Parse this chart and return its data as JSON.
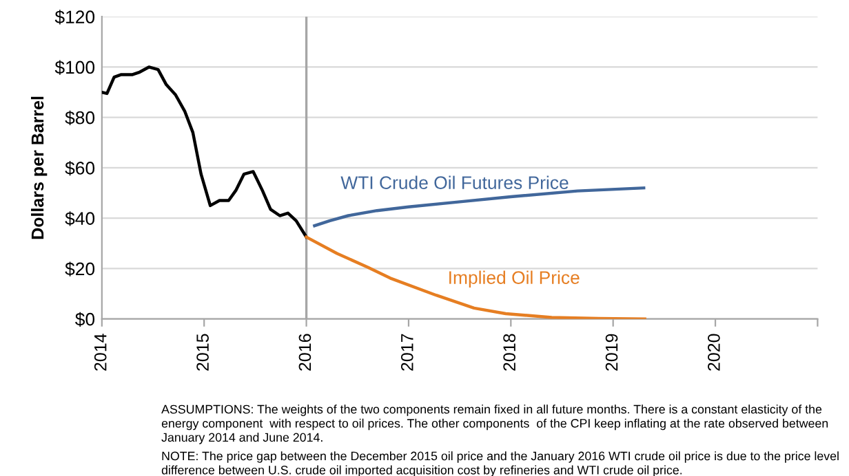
{
  "chart_data": {
    "type": "line",
    "ylabel": "Dollars per Barrel",
    "series": [
      {
        "color": "#000000",
        "x": [
          2014.0,
          2014.05,
          2014.12,
          2014.19,
          2014.3,
          2014.37,
          2014.46,
          2014.55,
          2014.63,
          2014.72,
          2014.81,
          2014.89,
          2014.97,
          2015.06,
          2015.15,
          2015.24,
          2015.31,
          2015.39,
          2015.48,
          2015.57,
          2015.65,
          2015.74,
          2015.82,
          2015.9,
          2016.0
        ],
        "values": [
          90,
          89.5,
          96,
          97,
          97,
          98,
          100,
          99,
          93,
          89,
          82.5,
          74,
          57.5,
          45,
          47,
          47,
          51,
          57.5,
          58.5,
          51,
          43.5,
          41,
          42,
          39,
          32.5
        ]
      },
      {
        "name": "WTI Crude Oil Futures Price",
        "color": "#41679b",
        "x": [
          2016.08,
          2016.23,
          2016.41,
          2016.69,
          2017.0,
          2017.5,
          2018.0,
          2018.65,
          2019.3
        ],
        "values": [
          37,
          39,
          41,
          43,
          44.5,
          46.5,
          48.5,
          50.8,
          52
        ]
      },
      {
        "name": "Implied Oil Price",
        "color": "#e67e22",
        "x": [
          2016.0,
          2016.3,
          2016.6,
          2016.82,
          2017.27,
          2017.64,
          2017.95,
          2018.4,
          2018.86,
          2019.31
        ],
        "values": [
          32.5,
          26,
          20.5,
          16.2,
          9.4,
          4.3,
          2.1,
          0.6,
          0.2,
          0
        ]
      }
    ],
    "xlim": [
      2014,
      2021
    ],
    "xticks": [
      2014,
      2015,
      2016,
      2017,
      2018,
      2019,
      2020,
      {
        "value": 2021,
        "label": null
      }
    ],
    "ylim": [
      0,
      120
    ],
    "yticks": [
      {
        "value": 0,
        "label": "$0"
      },
      {
        "value": 20,
        "label": "$20"
      },
      {
        "value": 40,
        "label": "$40"
      },
      {
        "value": 60,
        "label": "$60"
      },
      {
        "value": 80,
        "label": "$80"
      },
      {
        "value": 100,
        "label": "$100"
      },
      {
        "value": 120,
        "label": "$120"
      }
    ],
    "grid": "y",
    "line_style": "solid",
    "marker": "none",
    "ref_lines": [
      {
        "axis": "x",
        "value": 2016,
        "color": "#a6a6a6"
      }
    ],
    "annotations": [
      "ASSUMPTIONS: The weights of the two components remain fixed in all future months. There is a constant elasticity of the energy component  with respect to oil prices. The other components  of the CPI keep inflating at the rate observed between January 2014 and June 2014.",
      "NOTE: The price gap between the December 2015 oil price and the January 2016 WTI crude oil price is due to the price level difference between U.S. crude oil imported acquisition cost by refineries and WTI crude oil price."
    ]
  }
}
